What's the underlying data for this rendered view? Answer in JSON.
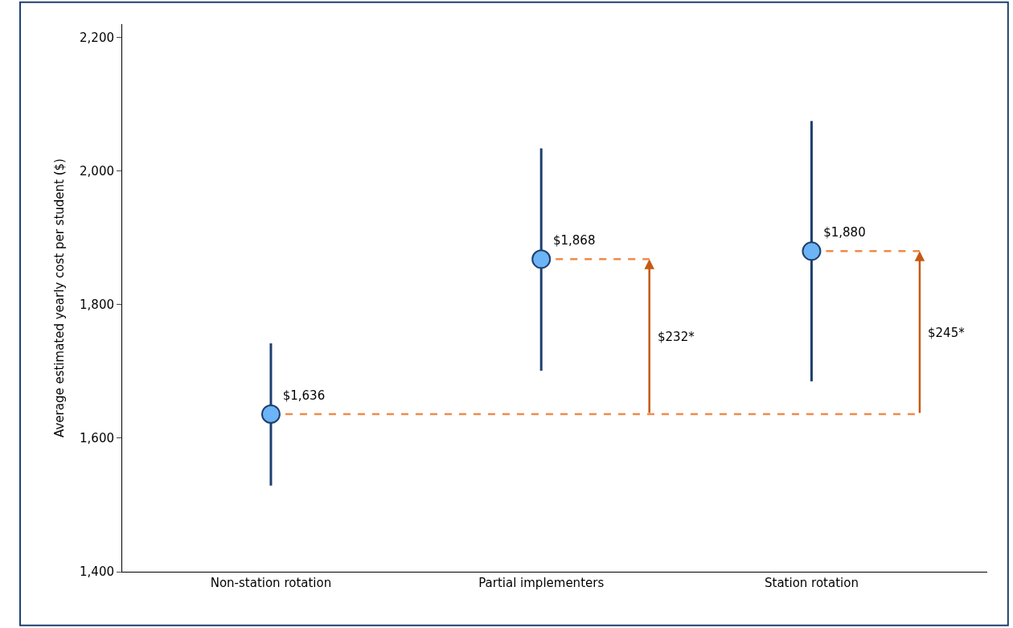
{
  "chart_data": {
    "type": "scatter",
    "ylabel": "Average estimated yearly cost per student ($)",
    "categories": [
      "Non-station rotation",
      "Partial implementers",
      "Station rotation"
    ],
    "values": [
      1636,
      1868,
      1880
    ],
    "value_labels": [
      "$1,636",
      "$1,868",
      "$1,880"
    ],
    "errors": [
      [
        1529,
        1742
      ],
      [
        1701,
        2034
      ],
      [
        1685,
        2075
      ]
    ],
    "color": "#6cb4f5",
    "marker": "circle",
    "ylim": [
      1400,
      2220
    ],
    "yticks": [
      {
        "value": 1400,
        "label": "1,400"
      },
      {
        "value": 1600,
        "label": "1,600"
      },
      {
        "value": 1800,
        "label": "1,800"
      },
      {
        "value": 2000,
        "label": "2,000"
      },
      {
        "value": 2200,
        "label": "2,200"
      }
    ],
    "legend": false,
    "ref_lines": [
      {
        "axis": "y",
        "value": 1636,
        "color": "#f08a4b",
        "line_style": "dashed"
      },
      {
        "axis": "y",
        "value": 1868,
        "color": "#f08a4b",
        "line_style": "dashed"
      },
      {
        "axis": "y",
        "value": 1880,
        "color": "#f08a4b",
        "line_style": "dashed"
      }
    ],
    "annotations": [
      "$232*",
      "$245*"
    ]
  }
}
